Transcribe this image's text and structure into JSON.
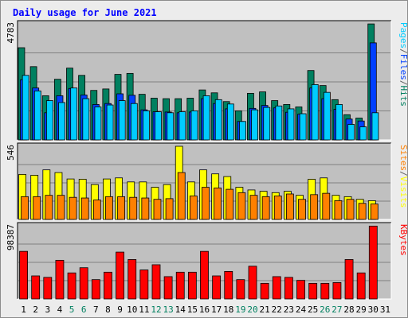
{
  "chart_data": {
    "type": "bar",
    "title": "Daily usage for June 2021",
    "x": [
      "1",
      "2",
      "3",
      "4",
      "5",
      "6",
      "7",
      "8",
      "9",
      "10",
      "11",
      "12",
      "13",
      "14",
      "15",
      "16",
      "17",
      "18",
      "19",
      "20",
      "21",
      "22",
      "23",
      "24",
      "25",
      "26",
      "27",
      "28",
      "29",
      "30",
      "31"
    ],
    "weekend_days": [
      5,
      6,
      12,
      13,
      19,
      20,
      26,
      27
    ],
    "panels": [
      {
        "max_label": "4783",
        "ymax": 4783,
        "axis_label_parts": [
          "Pages",
          "/",
          "Files",
          "/",
          "Hits"
        ],
        "axis_label_colors": [
          "#00ccff",
          "#606060",
          "#0040ff",
          "#606060",
          "#008060"
        ],
        "series": [
          {
            "name": "Hits",
            "color": "#008060",
            "values": [
              3800,
              3020,
              1820,
              2500,
              2960,
              2660,
              2040,
              2100,
              2700,
              2740,
              1880,
              1720,
              1700,
              1700,
              1720,
              2060,
              1940,
              1580,
              1200,
              1920,
              1980,
              1620,
              1460,
              1360,
              2860,
              2240,
              1660,
              1040,
              900,
              4780,
              0
            ]
          },
          {
            "name": "Files",
            "color": "#0040ff",
            "values": [
              2480,
              2140,
              1120,
              1820,
              2120,
              1850,
              1460,
              1500,
              1900,
              1840,
              1240,
              1160,
              1150,
              1120,
              1150,
              1700,
              1500,
              1280,
              760,
              1300,
              1420,
              1320,
              1140,
              1060,
              2140,
              1700,
              1260,
              860,
              780,
              4000,
              0
            ]
          },
          {
            "name": "Pages",
            "color": "#00ccff",
            "values": [
              2660,
              2020,
              1620,
              1540,
              2140,
              1700,
              1360,
              1440,
              1620,
              1500,
              1200,
              1160,
              1120,
              1160,
              1200,
              1820,
              1660,
              1480,
              760,
              1240,
              1340,
              1400,
              1280,
              1080,
              2280,
              1960,
              1460,
              640,
              540,
              1120,
              0
            ]
          }
        ]
      },
      {
        "max_label": "546",
        "ymax": 546,
        "axis_label_parts": [
          "Sites",
          "/",
          "Visits"
        ],
        "axis_label_colors": [
          "#ff8000",
          "#606060",
          "#ffff00"
        ],
        "series": [
          {
            "name": "Visits",
            "color": "#ffff00",
            "values": [
              336,
              330,
              370,
              350,
              302,
              300,
              260,
              302,
              310,
              280,
              280,
              240,
              260,
              546,
              280,
              370,
              340,
              320,
              240,
              220,
              210,
              200,
              210,
              180,
              300,
              310,
              180,
              170,
              150,
              140,
              0
            ]
          },
          {
            "name": "Sites",
            "color": "#ff8000",
            "values": [
              170,
              170,
              180,
              180,
              165,
              160,
              145,
              170,
              170,
              165,
              160,
              150,
              155,
              350,
              175,
              240,
              235,
              225,
              200,
              180,
              170,
              175,
              190,
              150,
              185,
              195,
              140,
              150,
              120,
              115,
              0
            ]
          }
        ]
      },
      {
        "max_label": "98387",
        "ymax": 98387,
        "axis_label_parts": [
          "KBytes"
        ],
        "axis_label_colors": [
          "#ff0000"
        ],
        "series": [
          {
            "name": "KBytes",
            "color": "#ff0000",
            "values": [
              64000,
              31000,
              29000,
              52000,
              35000,
              42000,
              26000,
              36000,
              63000,
              53000,
              39000,
              46000,
              30000,
              36000,
              36000,
              64000,
              31000,
              37000,
              26000,
              44000,
              21000,
              30000,
              29000,
              25000,
              21000,
              21000,
              22000,
              53000,
              35000,
              98000,
              0
            ]
          }
        ]
      }
    ]
  }
}
